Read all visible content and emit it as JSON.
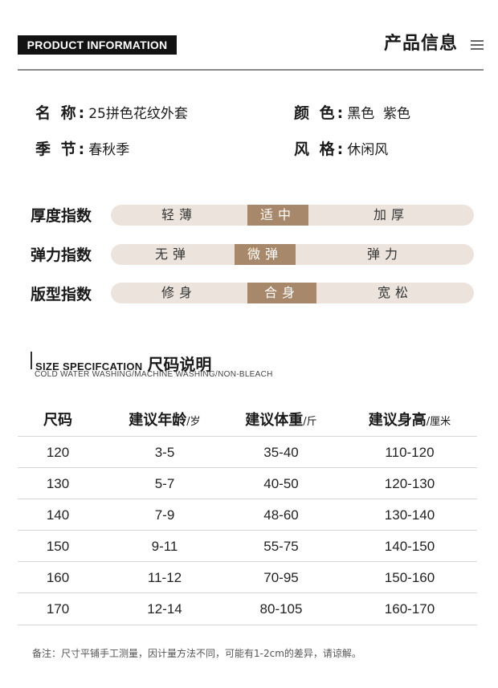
{
  "header": {
    "badge": "PRODUCT INFORMATION",
    "title": "产品信息"
  },
  "attributes": [
    {
      "key": "名 称:",
      "value": "25拼色花纹外套"
    },
    {
      "key": "颜 色:",
      "value": "黑色  紫色"
    },
    {
      "key": "季 节:",
      "value": "春秋季"
    },
    {
      "key": "风 格:",
      "value": "休闲风"
    }
  ],
  "indices": [
    {
      "label": "厚度指数",
      "options": [
        "轻薄",
        "适中",
        "加厚"
      ],
      "selected": 1
    },
    {
      "label": "弹力指数",
      "options": [
        "无弹",
        "微弹",
        "弹力"
      ],
      "selected": 1
    },
    {
      "label": "版型指数",
      "options": [
        "修身",
        "合身",
        "宽松"
      ],
      "selected": 1
    }
  ],
  "size_section": {
    "title_en": "SIZE SPECIFCATION",
    "title_cn": "尺码说明",
    "subtitle": "COLD WATER WASHING/MACHINE WASHING/NON-BLEACH"
  },
  "size_table": {
    "headers": [
      {
        "main": "尺码",
        "unit": ""
      },
      {
        "main": "建议年龄",
        "unit": "/岁"
      },
      {
        "main": "建议体重",
        "unit": "/斤"
      },
      {
        "main": "建议身高",
        "unit": "/厘米"
      }
    ],
    "rows": [
      [
        "120",
        "3-5",
        "35-40",
        "110-120"
      ],
      [
        "130",
        "5-7",
        "40-50",
        "120-130"
      ],
      [
        "140",
        "7-9",
        "48-60",
        "130-140"
      ],
      [
        "150",
        "9-11",
        "55-75",
        "140-150"
      ],
      [
        "160",
        "11-12",
        "70-95",
        "150-160"
      ],
      [
        "170",
        "12-14",
        "80-105",
        "160-170"
      ]
    ]
  },
  "note": "备注：尺寸平铺手工测量，因计量方法不同，可能有1-2cm的差异，请谅解。",
  "colors": {
    "accent": "#a8886a",
    "bar_bg": "#ece4dc",
    "badge_bg": "#121212"
  },
  "icons": {
    "menu": "menu-icon"
  }
}
